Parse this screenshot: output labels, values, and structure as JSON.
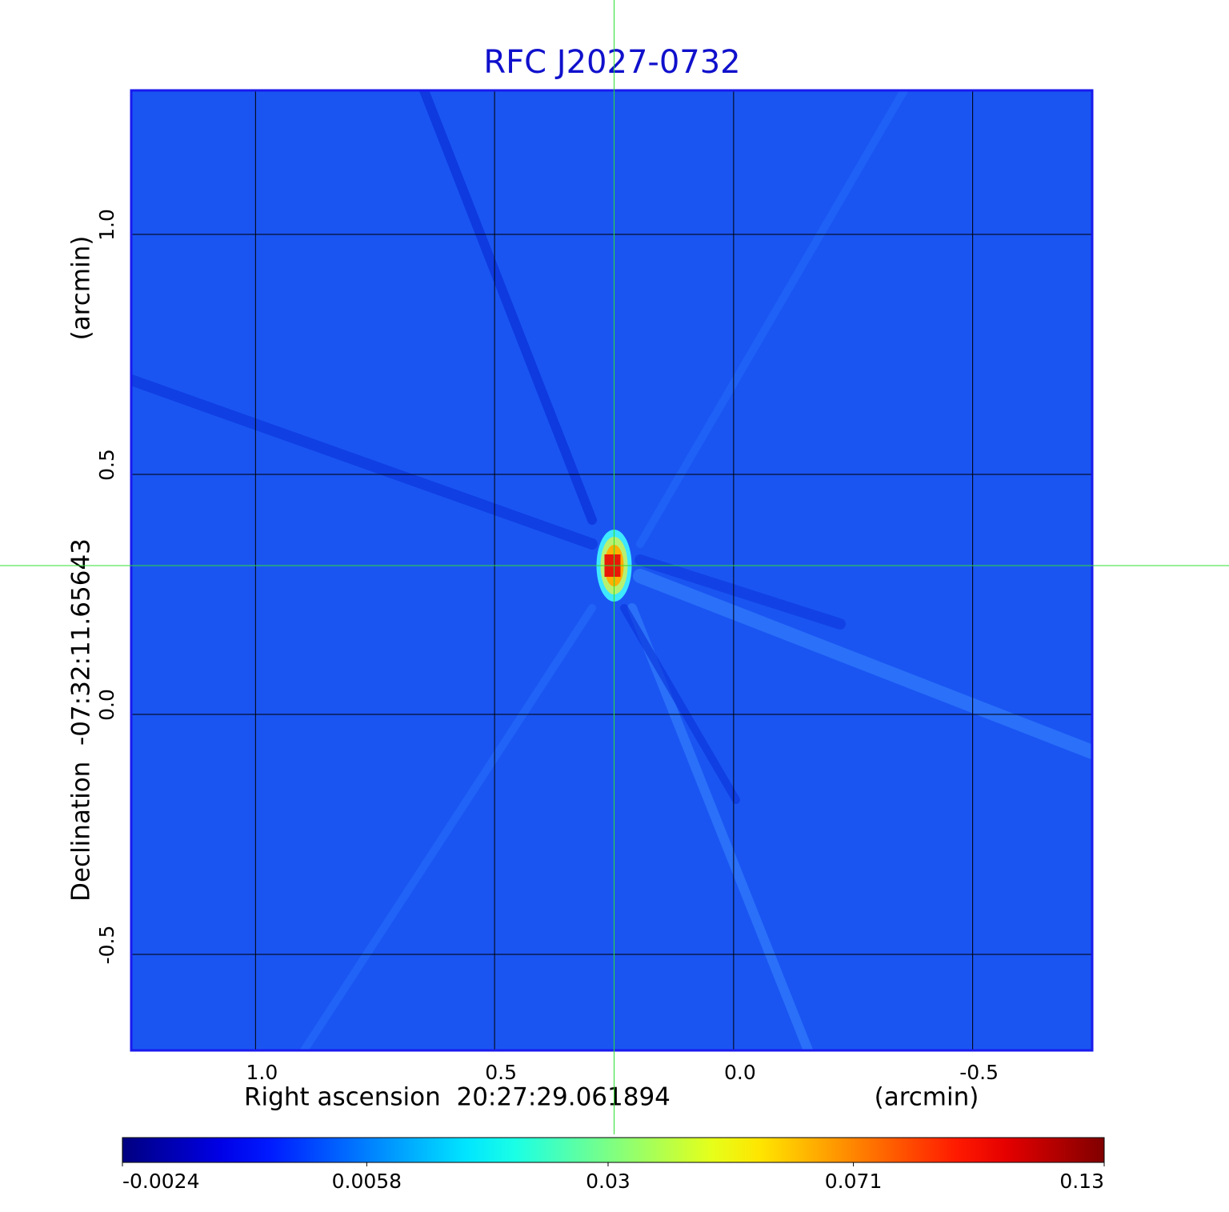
{
  "chart_data": {
    "type": "image",
    "title": "RFC J2027-0732",
    "xlabel": "Right ascension  20:27:29.061894",
    "xunit": "(arcmin)",
    "ylabel": "Declination  -07:32:11.65643",
    "yunit": "(arcmin)",
    "xlim": [
      1.26,
      -0.75
    ],
    "ylim": [
      -0.7,
      1.3
    ],
    "xticks": [
      {
        "value": 1,
        "label": "1.0"
      },
      0.5,
      {
        "value": 0,
        "label": "0.0"
      },
      -0.5
    ],
    "yticks": [
      {
        "value": 1,
        "label": "1.0"
      },
      0.5,
      {
        "value": 0,
        "label": "0.0"
      },
      -0.5
    ],
    "grid": true,
    "crosshair": [
      0.25,
      0.31
    ],
    "source": {
      "x": 0.25,
      "y": 0.31,
      "peak": 0.12
    },
    "colormap": "jet",
    "color_scale": "sqrt",
    "clim": [
      -0.0024,
      0.13
    ],
    "cticks": [
      -0.0024,
      0.0058,
      0.03,
      0.071,
      0.13
    ]
  }
}
